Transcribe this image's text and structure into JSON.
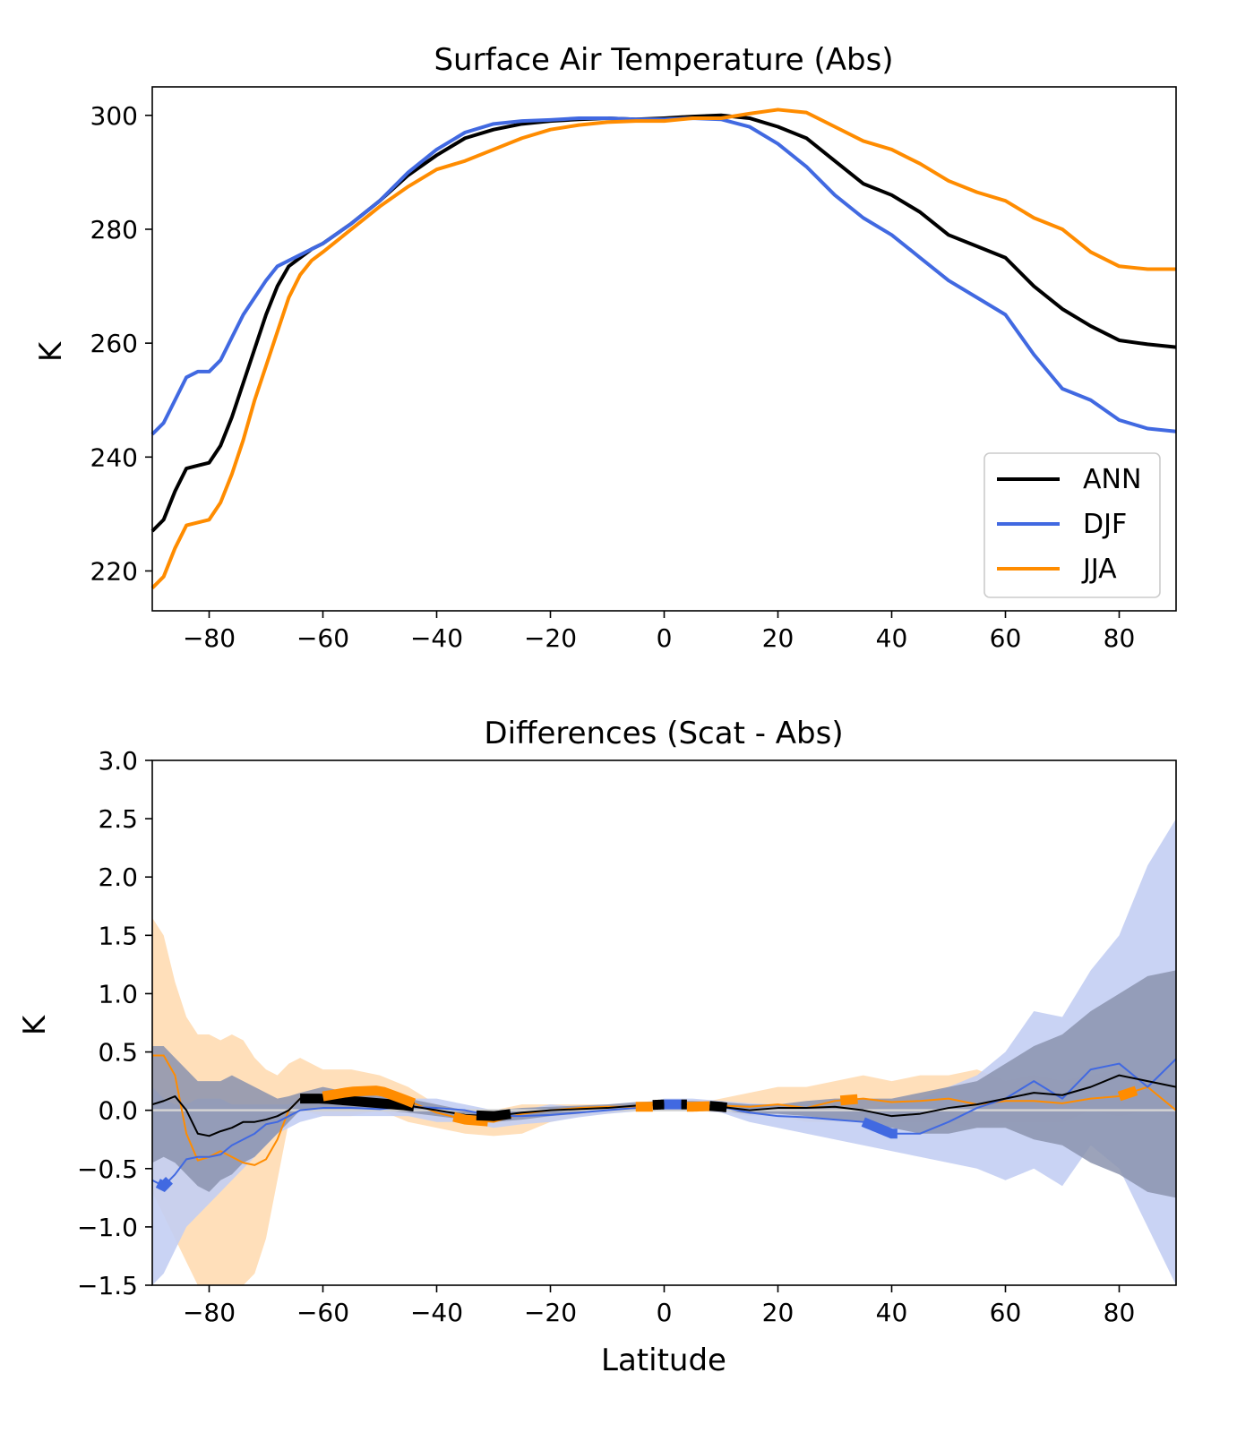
{
  "chart_data": [
    {
      "type": "line",
      "title": "Surface Air Temperature (Abs)",
      "xlabel": "",
      "ylabel": "K",
      "xlim": [
        -90,
        90
      ],
      "ylim": [
        213,
        305
      ],
      "xticks": [
        -80,
        -60,
        -40,
        -20,
        0,
        20,
        40,
        60,
        80
      ],
      "xtick_labels": [
        "−80",
        "−60",
        "−40",
        "−20",
        "0",
        "20",
        "40",
        "60",
        "80"
      ],
      "yticks": [
        220,
        240,
        260,
        280,
        300
      ],
      "ytick_labels": [
        "220",
        "240",
        "260",
        "280",
        "300"
      ],
      "grid": false,
      "legend": {
        "position": "lower-right",
        "entries": [
          "ANN",
          "DJF",
          "JJA"
        ]
      },
      "series": [
        {
          "name": "ANN",
          "color": "#000000",
          "x": [
            -90,
            -88,
            -86,
            -84,
            -82,
            -80,
            -78,
            -76,
            -74,
            -72,
            -70,
            -68,
            -66,
            -64,
            -62,
            -60,
            -55,
            -50,
            -45,
            -40,
            -35,
            -30,
            -25,
            -20,
            -15,
            -10,
            -5,
            0,
            5,
            10,
            15,
            20,
            25,
            30,
            35,
            40,
            45,
            50,
            55,
            60,
            65,
            70,
            75,
            80,
            85,
            90
          ],
          "values": [
            227,
            229,
            234,
            238,
            238.5,
            239,
            242,
            247,
            253,
            259,
            265,
            270,
            273.5,
            275,
            276.5,
            277.5,
            281,
            285,
            289.5,
            293,
            296,
            297.5,
            298.5,
            299,
            299.3,
            299.5,
            299.3,
            299.5,
            299.8,
            300.0,
            299.5,
            298,
            296,
            292,
            288,
            286,
            283,
            279,
            277,
            275,
            270,
            266,
            263,
            260.5,
            259.8,
            259.3
          ]
        },
        {
          "name": "DJF",
          "color": "#4169E1",
          "x": [
            -90,
            -88,
            -86,
            -84,
            -82,
            -80,
            -78,
            -76,
            -74,
            -72,
            -70,
            -68,
            -66,
            -64,
            -62,
            -60,
            -55,
            -50,
            -45,
            -40,
            -35,
            -30,
            -25,
            -20,
            -15,
            -10,
            -5,
            0,
            5,
            10,
            15,
            20,
            25,
            30,
            35,
            40,
            45,
            50,
            55,
            60,
            65,
            70,
            75,
            80,
            85,
            90
          ],
          "values": [
            244,
            246,
            250,
            254,
            255,
            255,
            257,
            261,
            265,
            268,
            271,
            273.5,
            274.5,
            275.5,
            276.5,
            277.5,
            281,
            285,
            290,
            294,
            297,
            298.5,
            299,
            299.2,
            299.5,
            299.5,
            299.3,
            299.3,
            299.5,
            299.3,
            298,
            295,
            291,
            286,
            282,
            279,
            275,
            271,
            268,
            265,
            258,
            252,
            250,
            246.5,
            245,
            244.5
          ]
        },
        {
          "name": "JJA",
          "color": "#FF8C00",
          "x": [
            -90,
            -88,
            -86,
            -84,
            -82,
            -80,
            -78,
            -76,
            -74,
            -72,
            -70,
            -68,
            -66,
            -64,
            -62,
            -60,
            -55,
            -50,
            -45,
            -40,
            -35,
            -30,
            -25,
            -20,
            -15,
            -10,
            -5,
            0,
            5,
            10,
            15,
            20,
            25,
            30,
            35,
            40,
            45,
            50,
            55,
            60,
            65,
            70,
            75,
            80,
            85,
            90
          ],
          "values": [
            217,
            219,
            224,
            228,
            228.5,
            229,
            232,
            237,
            243,
            250,
            256,
            262,
            268,
            272,
            274.5,
            276,
            280,
            284,
            287.5,
            290.5,
            292,
            294,
            296,
            297.5,
            298.3,
            298.8,
            299,
            299,
            299.5,
            299.5,
            300.3,
            301,
            300.5,
            298,
            295.5,
            294,
            291.5,
            288.5,
            286.5,
            285,
            282,
            280,
            276,
            273.5,
            273,
            273
          ]
        }
      ]
    },
    {
      "type": "line",
      "title": "Differences (Scat - Abs)",
      "xlabel": "Latitude",
      "ylabel": "K",
      "xlim": [
        -90,
        90
      ],
      "ylim": [
        -1.5,
        3.0
      ],
      "xticks": [
        -80,
        -60,
        -40,
        -20,
        0,
        20,
        40,
        60,
        80
      ],
      "xtick_labels": [
        "−80",
        "−60",
        "−40",
        "−20",
        "0",
        "20",
        "40",
        "60",
        "80"
      ],
      "yticks": [
        -1.5,
        -1.0,
        -0.5,
        0.0,
        0.5,
        1.0,
        1.5,
        2.0,
        2.5,
        3.0
      ],
      "ytick_labels": [
        "−1.5",
        "−1.0",
        "−0.5",
        "0.0",
        "0.5",
        "1.0",
        "1.5",
        "2.0",
        "2.5",
        "3.0"
      ],
      "grid": false,
      "zero_line": true,
      "series": [
        {
          "color": "#FF8C00",
          "band_color": "#FFDCB3",
          "x": [
            -90,
            -88,
            -86,
            -84,
            -82,
            -80,
            -78,
            -76,
            -74,
            -72,
            -70,
            -68,
            -66,
            -64,
            -60,
            -55,
            -50,
            -45,
            -40,
            -35,
            -30,
            -25,
            -20,
            -15,
            -10,
            -5,
            0,
            5,
            10,
            15,
            20,
            25,
            30,
            35,
            40,
            45,
            50,
            55,
            60,
            65,
            70,
            75,
            80,
            85,
            90
          ],
          "values": [
            0.47,
            0.47,
            0.3,
            -0.2,
            -0.43,
            -0.4,
            -0.35,
            -0.4,
            -0.45,
            -0.47,
            -0.42,
            -0.25,
            0.0,
            0.1,
            0.12,
            0.16,
            0.17,
            0.08,
            -0.02,
            -0.08,
            -0.1,
            -0.03,
            0.0,
            0.02,
            0.03,
            0.03,
            0.03,
            0.03,
            0.04,
            0.03,
            0.05,
            0.02,
            0.08,
            0.1,
            0.07,
            0.08,
            0.1,
            0.05,
            0.08,
            0.08,
            0.06,
            0.1,
            0.12,
            0.2,
            0.0
          ],
          "upper": [
            1.65,
            1.5,
            1.1,
            0.8,
            0.65,
            0.65,
            0.6,
            0.65,
            0.6,
            0.45,
            0.35,
            0.3,
            0.4,
            0.45,
            0.35,
            0.35,
            0.3,
            0.2,
            0.05,
            0.0,
            0.0,
            0.05,
            0.05,
            0.05,
            0.05,
            0.05,
            0.05,
            0.05,
            0.1,
            0.15,
            0.2,
            0.2,
            0.25,
            0.3,
            0.25,
            0.3,
            0.3,
            0.35,
            0.25,
            0.3,
            0.25,
            0.3,
            0.35,
            0.3,
            0.1
          ],
          "lower": [
            -0.7,
            -0.9,
            -1.1,
            -1.3,
            -1.5,
            -1.5,
            -1.5,
            -1.5,
            -1.5,
            -1.4,
            -1.1,
            -0.6,
            -0.1,
            0.0,
            -0.05,
            -0.05,
            0.0,
            -0.1,
            -0.15,
            -0.2,
            -0.22,
            -0.2,
            -0.1,
            -0.05,
            -0.03,
            0.0,
            0.0,
            0.0,
            -0.02,
            -0.05,
            -0.05,
            -0.1,
            -0.1,
            -0.1,
            -0.1,
            -0.1,
            -0.1,
            -0.15,
            -0.1,
            -0.1,
            -0.1,
            0.0,
            -0.05,
            0.0,
            -0.05
          ]
        },
        {
          "color": "#4169E1",
          "band_color": "#C3CEF3",
          "x": [
            -90,
            -88,
            -86,
            -84,
            -82,
            -80,
            -78,
            -76,
            -74,
            -72,
            -70,
            -68,
            -66,
            -64,
            -60,
            -55,
            -50,
            -45,
            -40,
            -35,
            -30,
            -25,
            -20,
            -15,
            -10,
            -5,
            0,
            5,
            10,
            15,
            20,
            25,
            30,
            35,
            40,
            45,
            50,
            55,
            60,
            65,
            70,
            75,
            80,
            85,
            90
          ],
          "values": [
            -0.6,
            -0.65,
            -0.55,
            -0.42,
            -0.4,
            -0.4,
            -0.38,
            -0.3,
            -0.25,
            -0.2,
            -0.12,
            -0.1,
            -0.05,
            0.0,
            0.02,
            0.02,
            0.01,
            0.03,
            0.02,
            0.0,
            -0.05,
            -0.05,
            -0.04,
            -0.02,
            0.0,
            0.02,
            0.05,
            0.05,
            0.03,
            -0.02,
            -0.05,
            -0.06,
            -0.08,
            -0.1,
            -0.2,
            -0.2,
            -0.1,
            0.02,
            0.1,
            0.25,
            0.1,
            0.35,
            0.4,
            0.2,
            0.44
          ],
          "upper": [
            0.2,
            0.1,
            0.05,
            0.05,
            0.1,
            0.1,
            0.1,
            0.05,
            0.05,
            0.05,
            0.05,
            0.05,
            0.05,
            0.1,
            0.1,
            0.15,
            0.15,
            0.1,
            0.1,
            0.05,
            0.0,
            0.0,
            0.05,
            0.03,
            0.03,
            0.05,
            0.1,
            0.1,
            0.08,
            0.06,
            0.05,
            0.05,
            0.0,
            0.0,
            0.05,
            0.1,
            0.2,
            0.3,
            0.5,
            0.85,
            0.8,
            1.2,
            1.5,
            2.1,
            2.5
          ],
          "lower": [
            -1.5,
            -1.4,
            -1.2,
            -1.0,
            -0.9,
            -0.8,
            -0.7,
            -0.6,
            -0.5,
            -0.4,
            -0.3,
            -0.2,
            -0.15,
            -0.1,
            -0.05,
            -0.05,
            -0.05,
            -0.05,
            -0.1,
            -0.1,
            -0.15,
            -0.12,
            -0.1,
            -0.06,
            -0.03,
            -0.01,
            0.0,
            0.0,
            -0.02,
            -0.1,
            -0.15,
            -0.2,
            -0.25,
            -0.3,
            -0.35,
            -0.4,
            -0.45,
            -0.5,
            -0.6,
            -0.5,
            -0.65,
            -0.3,
            -0.5,
            -1.0,
            -1.5
          ]
        },
        {
          "color": "#000000",
          "band_color": "#8B93AE",
          "x": [
            -90,
            -88,
            -86,
            -84,
            -82,
            -80,
            -78,
            -76,
            -74,
            -72,
            -70,
            -68,
            -66,
            -64,
            -60,
            -55,
            -50,
            -45,
            -40,
            -35,
            -30,
            -25,
            -20,
            -15,
            -10,
            -5,
            0,
            5,
            10,
            15,
            20,
            25,
            30,
            35,
            40,
            45,
            50,
            55,
            60,
            65,
            70,
            75,
            80,
            85,
            90
          ],
          "values": [
            0.05,
            0.08,
            0.12,
            0.0,
            -0.2,
            -0.22,
            -0.18,
            -0.15,
            -0.1,
            -0.1,
            -0.08,
            -0.05,
            0.0,
            0.1,
            0.1,
            0.08,
            0.06,
            0.04,
            0.0,
            -0.04,
            -0.05,
            -0.02,
            0.0,
            0.01,
            0.02,
            0.04,
            0.05,
            0.05,
            0.03,
            0.0,
            0.02,
            0.02,
            0.03,
            0.0,
            -0.05,
            -0.03,
            0.02,
            0.05,
            0.1,
            0.15,
            0.13,
            0.2,
            0.3,
            0.25,
            0.2
          ],
          "upper": [
            0.55,
            0.55,
            0.45,
            0.35,
            0.25,
            0.25,
            0.25,
            0.3,
            0.25,
            0.2,
            0.15,
            0.1,
            0.12,
            0.15,
            0.2,
            0.15,
            0.12,
            0.1,
            0.05,
            0.0,
            0.0,
            0.02,
            0.03,
            0.04,
            0.05,
            0.07,
            0.08,
            0.08,
            0.07,
            0.05,
            0.05,
            0.08,
            0.1,
            0.1,
            0.1,
            0.15,
            0.2,
            0.25,
            0.4,
            0.55,
            0.65,
            0.85,
            1.0,
            1.15,
            1.2
          ],
          "lower": [
            -0.45,
            -0.4,
            -0.45,
            -0.55,
            -0.65,
            -0.7,
            -0.6,
            -0.55,
            -0.45,
            -0.4,
            -0.3,
            -0.2,
            -0.1,
            0.0,
            0.0,
            0.0,
            0.0,
            -0.02,
            -0.05,
            -0.08,
            -0.1,
            -0.08,
            -0.05,
            -0.03,
            0.0,
            0.0,
            0.02,
            0.02,
            0.0,
            -0.03,
            -0.03,
            -0.05,
            -0.08,
            -0.1,
            -0.15,
            -0.2,
            -0.2,
            -0.15,
            -0.15,
            -0.25,
            -0.3,
            -0.45,
            -0.55,
            -0.7,
            -0.75
          ]
        }
      ],
      "highlights": [
        {
          "color": "#4169E1",
          "x_start": -89,
          "x_end": -87
        },
        {
          "color": "#000000",
          "x_start": -64,
          "x_end": -44
        },
        {
          "color": "#FF8C00",
          "x_start": -60,
          "x_end": -44
        },
        {
          "color": "#FF8C00",
          "x_start": -37,
          "x_end": -31
        },
        {
          "color": "#000000",
          "x_start": -33,
          "x_end": -27
        },
        {
          "color": "#FF8C00",
          "x_start": -5,
          "x_end": -2
        },
        {
          "color": "#000000",
          "x_start": -2,
          "x_end": 0
        },
        {
          "color": "#4169E1",
          "x_start": 0,
          "x_end": 3
        },
        {
          "color": "#000000",
          "x_start": 3,
          "x_end": 4
        },
        {
          "color": "#FF8C00",
          "x_start": 4,
          "x_end": 8
        },
        {
          "color": "#000000",
          "x_start": 8,
          "x_end": 11
        },
        {
          "color": "#FF8C00",
          "x_start": 31,
          "x_end": 34
        },
        {
          "color": "#4169E1",
          "x_start": 35,
          "x_end": 41
        },
        {
          "color": "#FF8C00",
          "x_start": 80,
          "x_end": 83
        }
      ]
    }
  ]
}
